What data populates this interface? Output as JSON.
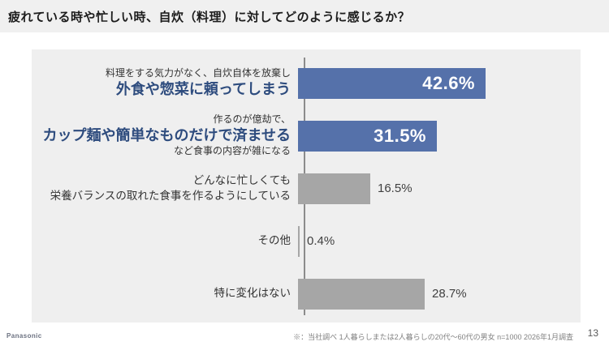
{
  "page": {
    "title": "疲れている時や忙しい時、自炊（料理）に対してどのように感じるか？"
  },
  "footer": {
    "source_note": "※：当社調べ 1人暮らしまたは2人暮らしの20代～60代の男女 n=1000 2026年1月調査",
    "page_number": "13",
    "brand_logo": "Panasonic"
  },
  "colors": {
    "header_background": "#F0F0F0",
    "panel_background": "#EFEFEF",
    "highlight_bar": "#5571AA",
    "default_bar": "#A6A6A6",
    "highlight_text": "#2E4C7E",
    "inside_value_text": "#FFFFFF",
    "outside_value_text": "#404040",
    "axis_line": "#8C8C8C"
  },
  "chart_data": {
    "type": "bar",
    "orientation": "horizontal",
    "title": "疲れている時や忙しい時、自炊（料理）に対してどのように感じるか？",
    "unit": "%",
    "xlim": [
      0,
      62
    ],
    "grid": false,
    "legend": false,
    "categories": [
      "料理をする気力がなく、自炊自体を放棄し 外食や惣菜に頼ってしまう",
      "作るのが億劫で、カップ麺や簡単なものだけで済ませる など食事の内容が雑になる",
      "どんなに忙しくても 栄養バランスの取れた食事を作るようにしている",
      "その他",
      "特に変化はない"
    ],
    "values": [
      42.6,
      31.5,
      16.5,
      0.4,
      28.7
    ],
    "bars": [
      {
        "label_lines": [
          {
            "text": "料理をする気力がなく、自炊自体を放棄し",
            "emphasis": false
          },
          {
            "text": "外食や惣菜に頼ってしまう",
            "emphasis": true
          }
        ],
        "value": 42.6,
        "value_label": "42.6%",
        "highlighted": true,
        "value_position": "inside"
      },
      {
        "label_lines": [
          {
            "text": "作るのが億劫で、",
            "emphasis": false
          },
          {
            "text": "カップ麺や簡単なものだけで済ませる",
            "emphasis": true
          },
          {
            "text": "など食事の内容が雑になる",
            "emphasis": false
          }
        ],
        "value": 31.5,
        "value_label": "31.5%",
        "highlighted": true,
        "value_position": "inside"
      },
      {
        "label_lines": [
          {
            "text": "どんなに忙しくても",
            "emphasis": false
          },
          {
            "text": "栄養バランスの取れた食事を作るようにしている",
            "emphasis": false
          }
        ],
        "value": 16.5,
        "value_label": "16.5%",
        "highlighted": false,
        "value_position": "outside"
      },
      {
        "label_lines": [
          {
            "text": "その他",
            "emphasis": false
          }
        ],
        "value": 0.4,
        "value_label": "0.4%",
        "highlighted": false,
        "value_position": "outside"
      },
      {
        "label_lines": [
          {
            "text": "特に変化はない",
            "emphasis": false
          }
        ],
        "value": 28.7,
        "value_label": "28.7%",
        "highlighted": false,
        "value_position": "outside"
      }
    ]
  }
}
